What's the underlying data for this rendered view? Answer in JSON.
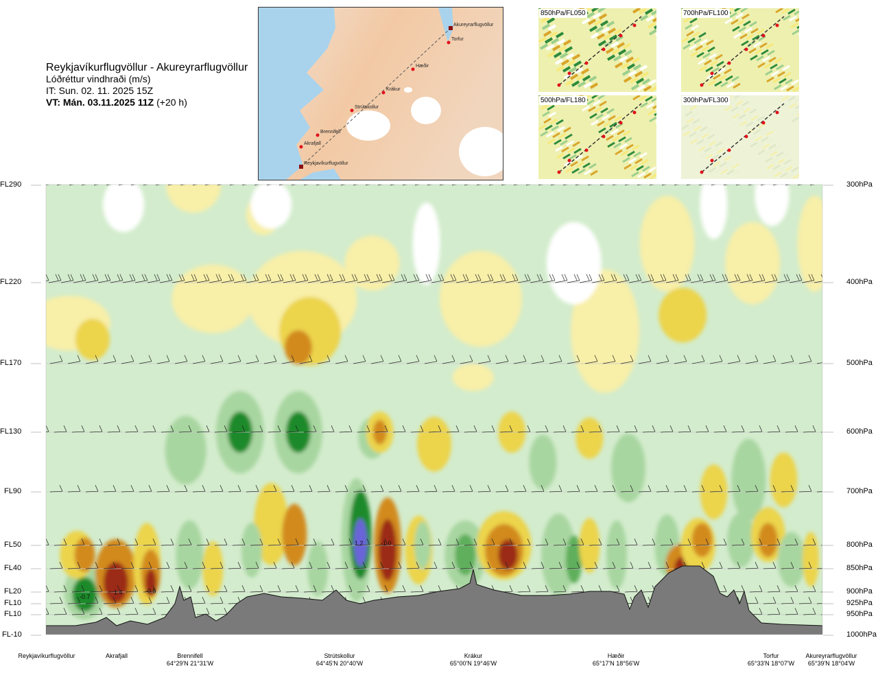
{
  "header": {
    "route": "Reykjavíkurflugvöllur - Akureyrarflugvöllur",
    "variable": "Lóðréttur vindhraði (m/s)",
    "issue_time": "IT: Sun. 02. 11. 2025 15Z",
    "valid_time": "VT: Mán. 03.11.2025 11Z",
    "lead": "(+20 h)"
  },
  "map": {
    "points": [
      "Reykjavíkurflugvöllur",
      "Akrafjall",
      "Brennifell",
      "Strútskollur",
      "Krákur",
      "Hæðir",
      "Torfur",
      "Akureyrarflugvöllur"
    ]
  },
  "mini_maps": [
    {
      "label": "850hPa/FL050"
    },
    {
      "label": "700hPa/FL100"
    },
    {
      "label": "500hPa/FL180"
    },
    {
      "label": "300hPa/FL300"
    }
  ],
  "chart_data": {
    "type": "heatmap",
    "title": "Lóðréttur vindhraði (m/s)",
    "left_axis_labels": [
      "FL290",
      "FL220",
      "FL170",
      "FL130",
      "FL90",
      "FL50",
      "FL40",
      "FL20",
      "FL10",
      "FL10",
      "FL-10"
    ],
    "right_axis_labels": [
      "300hPa",
      "400hPa",
      "500hPa",
      "600hPa",
      "700hPa",
      "800hPa",
      "850hPa",
      "900hPa",
      "925hPa",
      "950hPa",
      "1000hPa"
    ],
    "pressure_levels_hPa": [
      300,
      400,
      500,
      600,
      700,
      800,
      850,
      900,
      925,
      950,
      1000
    ],
    "waypoints": [
      {
        "name": "Reykjavíkurflugvöllur",
        "coord": ""
      },
      {
        "name": "Akrafjall",
        "coord": ""
      },
      {
        "name": "Brennifell",
        "coord": "64°29'N 21°31'W"
      },
      {
        "name": "Strútskollur",
        "coord": "64°45'N 20°40'W"
      },
      {
        "name": "Krákur",
        "coord": "65°00'N 19°46'W"
      },
      {
        "name": "Hæðir",
        "coord": "65°17'N 18°56'W"
      },
      {
        "name": "Torfur",
        "coord": "65°33'N 18°07'W"
      },
      {
        "name": "Akureyrarflugvöllur",
        "coord": "65°39'N 18°04'W"
      }
    ],
    "annotations": [
      {
        "text": "-0.7",
        "waypoint_fraction": 0.05,
        "level_hPa": 915
      },
      {
        "text": "1.4",
        "waypoint_fraction": 0.093,
        "level_hPa": 905
      },
      {
        "text": "-0.5",
        "waypoint_fraction": 0.135,
        "level_hPa": 902
      },
      {
        "text": "1.2",
        "waypoint_fraction": 0.403,
        "level_hPa": 800
      },
      {
        "text": "-1.0",
        "waypoint_fraction": 0.438,
        "level_hPa": 800
      }
    ],
    "colors": {
      "strong_down": "#9b2a14",
      "down": "#d28a1f",
      "weak_down": "#ecd44c",
      "very_weak_down": "#f8efa8",
      "neutral": "#ffffff",
      "very_weak_up": "#d3eccd",
      "weak_up": "#a8d6a0",
      "up": "#5faf5c",
      "strong_up": "#1d8a2c",
      "very_strong_up": "#6b63d9",
      "terrain": "#7a7a7a"
    }
  }
}
